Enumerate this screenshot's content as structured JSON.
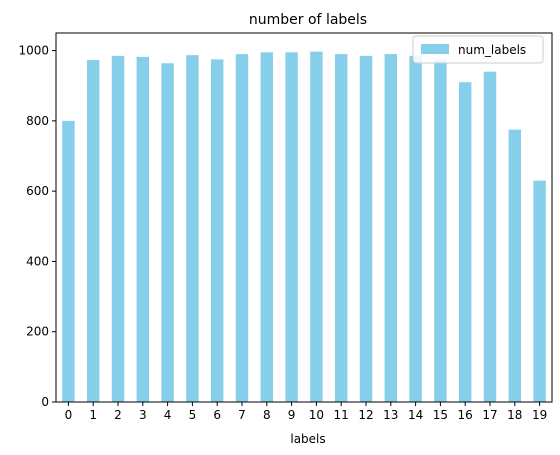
{
  "colors": {
    "bar": "#87ceeb",
    "axis": "#000000",
    "background": "#ffffff"
  },
  "chart_data": {
    "type": "bar",
    "title": "number of labels",
    "xlabel": "labels",
    "ylabel": "",
    "categories": [
      "0",
      "1",
      "2",
      "3",
      "4",
      "5",
      "6",
      "7",
      "8",
      "9",
      "10",
      "11",
      "12",
      "13",
      "14",
      "15",
      "16",
      "17",
      "18",
      "19"
    ],
    "series": [
      {
        "name": "num_labels",
        "values": [
          800,
          973,
          985,
          982,
          964,
          987,
          975,
          990,
          995,
          995,
          997,
          990,
          985,
          990,
          985,
          975,
          910,
          940,
          775,
          630
        ]
      }
    ],
    "ylim": [
      0,
      1050
    ],
    "yticks": [
      0,
      200,
      400,
      600,
      800,
      1000
    ],
    "grid": false,
    "legend_position": "top-right"
  }
}
